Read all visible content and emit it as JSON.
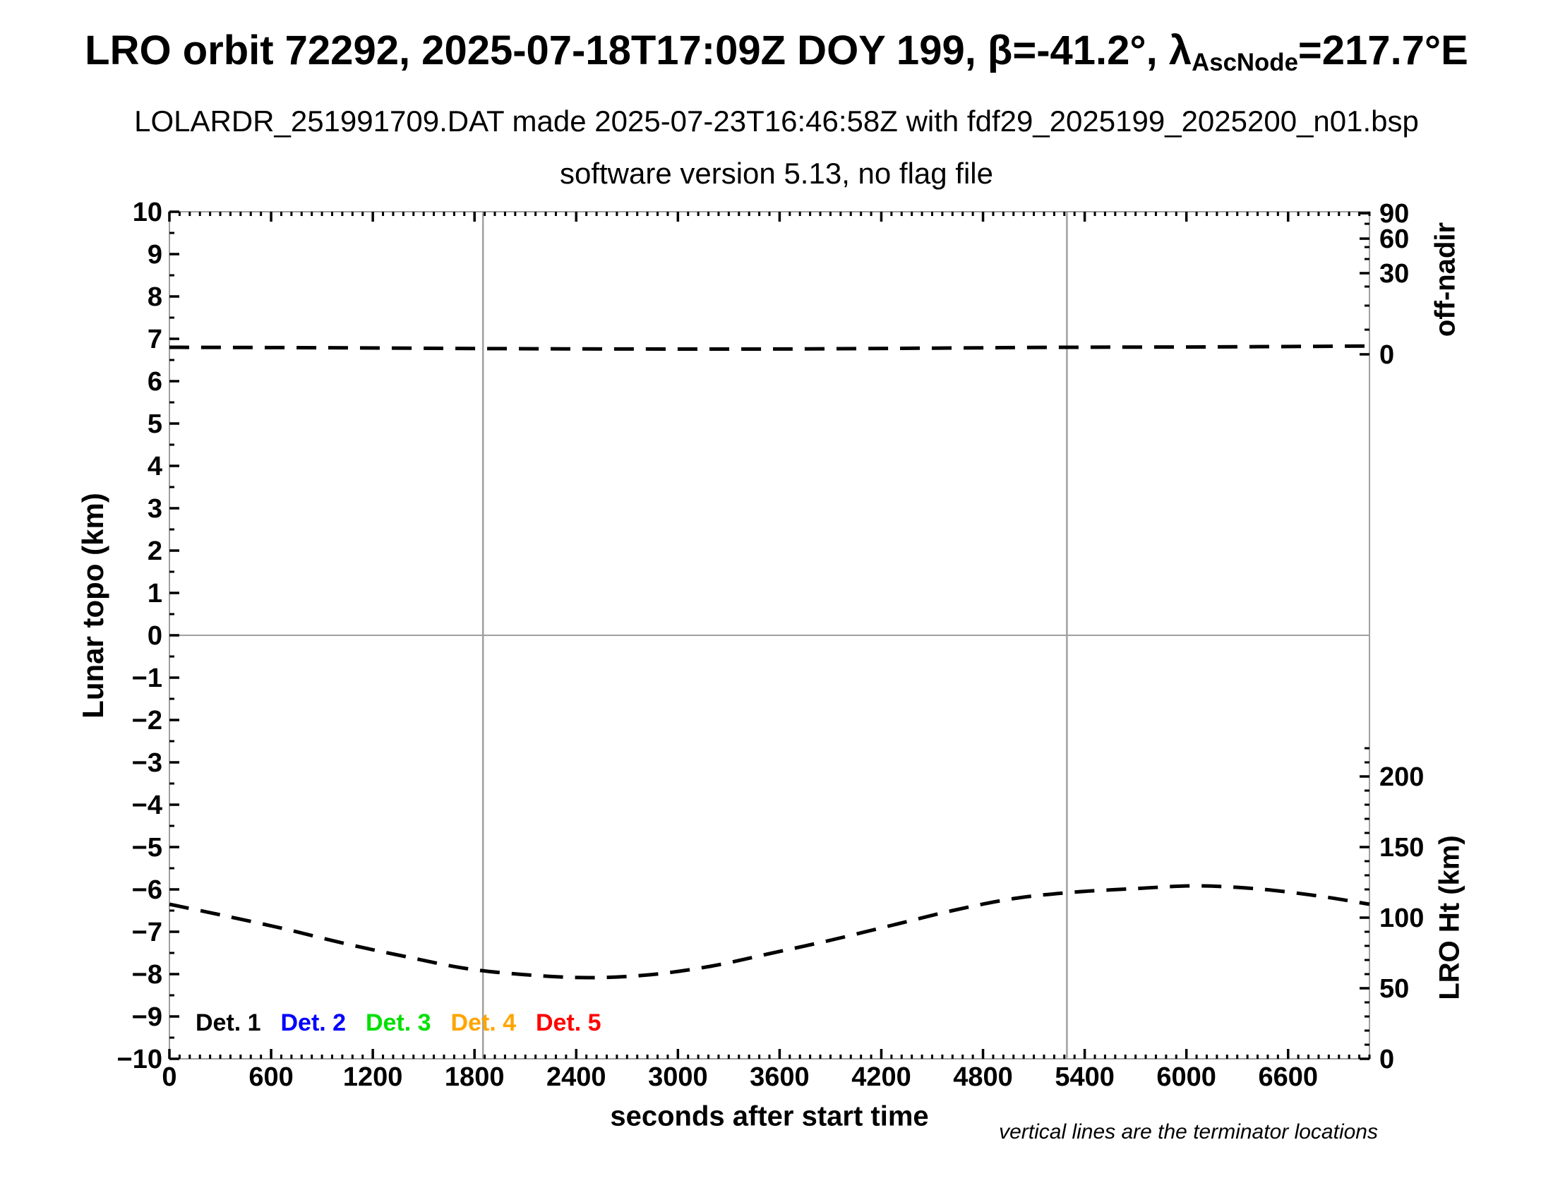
{
  "header": {
    "line1_prefix": "LRO orbit 72292, 2025-07-18T17:09Z DOY 199, β=-41.2°, λ",
    "line1_sub": "AscNode",
    "line1_suffix": "=217.7°E",
    "line2": "LOLARDR_251991709.DAT made 2025-07-23T16:46:58Z with fdf29_2025199_2025200_n01.bsp",
    "line3": "software version 5.13, no flag file"
  },
  "chart_data": {
    "type": "line",
    "xlabel": "seconds after start time",
    "x_range": [
      0,
      7080
    ],
    "x_major_ticks": [
      0,
      600,
      1200,
      1800,
      2400,
      3000,
      3600,
      4200,
      4800,
      5400,
      6000,
      6600
    ],
    "x_minor_step": 60,
    "left_axis": {
      "label": "Lunar topo (km)",
      "range": [
        -10,
        10
      ],
      "major_step": 1,
      "minor_step": 0.5
    },
    "right_axis_top": {
      "label": "off-nadir",
      "ticks": [
        {
          "value": "90",
          "frac": 0.0017
        },
        {
          "value": "60",
          "frac": 0.0317
        },
        {
          "value": "30",
          "frac": 0.0725
        },
        {
          "value": "0",
          "frac": 0.1683
        }
      ],
      "minor_fracs": [
        0.0142,
        0.0417,
        0.0558,
        0.0883,
        0.1108,
        0.1392
      ]
    },
    "right_axis_bottom": {
      "label": "LRO Ht (km)",
      "ticks": [
        0,
        50,
        100,
        150,
        200
      ],
      "minor_step": 10,
      "minor_max": 220
    },
    "terminators_t": [
      1850,
      5295
    ],
    "zero_line_topo": 0,
    "grid": false,
    "legend_note": "vertical lines are the terminator locations",
    "series": [
      {
        "name": "off-nadir-angle-line",
        "color": "#000000",
        "style": "dashed",
        "scale": "topo",
        "points": [
          [
            0,
            6.8
          ],
          [
            900,
            6.79
          ],
          [
            1850,
            6.77
          ],
          [
            2700,
            6.76
          ],
          [
            3600,
            6.76
          ],
          [
            4500,
            6.78
          ],
          [
            5300,
            6.8
          ],
          [
            6200,
            6.81
          ],
          [
            7080,
            6.83
          ]
        ]
      },
      {
        "name": "lro-height-curve",
        "color": "#000000",
        "style": "dashed",
        "scale": "ht",
        "points": [
          [
            0,
            109.5
          ],
          [
            320,
            101.5
          ],
          [
            680,
            92
          ],
          [
            1040,
            81.5
          ],
          [
            1390,
            72.5
          ],
          [
            1750,
            64
          ],
          [
            2110,
            59.5
          ],
          [
            2470,
            57.5
          ],
          [
            2830,
            59.5
          ],
          [
            3190,
            65.5
          ],
          [
            3540,
            74.5
          ],
          [
            3900,
            84
          ],
          [
            4260,
            94.5
          ],
          [
            4620,
            105
          ],
          [
            4980,
            113.5
          ],
          [
            5330,
            118
          ],
          [
            5690,
            120.5
          ],
          [
            6050,
            122.5
          ],
          [
            6410,
            120.5
          ],
          [
            6770,
            115.5
          ],
          [
            7080,
            109.5
          ]
        ]
      }
    ],
    "legend": {
      "items": [
        {
          "label": "Det. 1",
          "color": "#000000"
        },
        {
          "label": "Det. 2",
          "color": "#0000ff"
        },
        {
          "label": "Det. 3",
          "color": "#00e000"
        },
        {
          "label": "Det. 4",
          "color": "#ffa500"
        },
        {
          "label": "Det. 5",
          "color": "#ff0000"
        }
      ]
    },
    "frame_color": "#a0a0a0",
    "tick_color": "#000000"
  },
  "footnote": "vertical lines are the terminator locations"
}
